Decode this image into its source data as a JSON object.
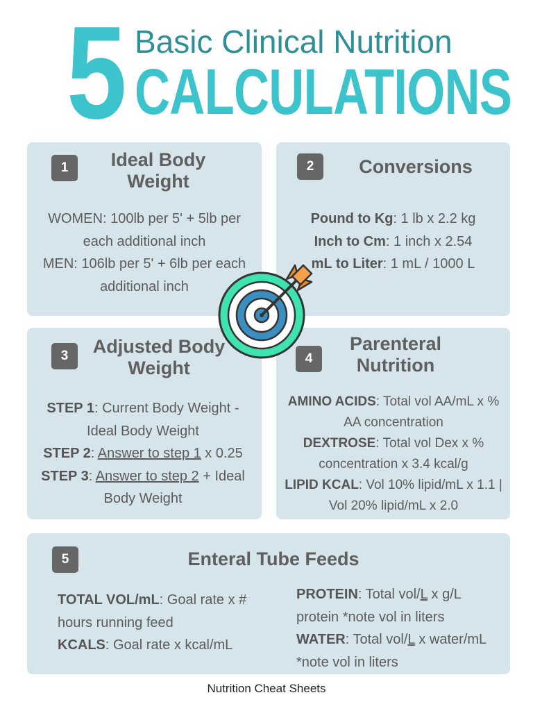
{
  "header": {
    "number": "5",
    "subtitle": "Basic Clinical Nutrition",
    "title": "CALCULATIONS"
  },
  "cards": {
    "ibw": {
      "badge": "1",
      "title_line1": "Ideal Body",
      "title_line2": "Weight",
      "women_line1": "WOMEN: 100lb per 5' + 5lb per",
      "women_line2": "each additional inch",
      "men_line1": "MEN: 106lb per 5' + 6lb per each",
      "men_line2": "additional inch"
    },
    "conversions": {
      "badge": "2",
      "title": "Conversions",
      "rows": [
        {
          "label": "Pound to Kg",
          "text": ": 1 lb x 2.2 kg"
        },
        {
          "label": "Inch to Cm",
          "text": ": 1 inch x 2.54"
        },
        {
          "label": "mL to Liter",
          "text": ": 1 mL / 1000 L"
        }
      ]
    },
    "abw": {
      "badge": "3",
      "title_line1": "Adjusted Body",
      "title_line2": "Weight",
      "step1_label": "STEP 1",
      "step1_text": ": Current Body Weight -",
      "step1_line2": "Ideal Body Weight",
      "step2_label": "STEP 2",
      "step2_sep": ": ",
      "step2_ref": "Answer to step 1",
      "step2_text": " x 0.25",
      "step3_label": "STEP 3",
      "step3_sep": ": ",
      "step3_ref": "Answer to step 2",
      "step3_text": " + Ideal",
      "step3_line2": "Body Weight"
    },
    "parenteral": {
      "badge": "4",
      "title_line1": "Parenteral",
      "title_line2": "Nutrition",
      "aa_label": "AMINO ACIDS",
      "aa_text": ": Total vol AA/mL x %",
      "aa_line2": "AA concentration",
      "dex_label": "DEXTROSE",
      "dex_text": ": Total vol Dex x %",
      "dex_line2": "concentration x 3.4 kcal/g",
      "lipid_label": "LIPID KCAL",
      "lipid_text": ": Vol 10% lipid/mL x 1.1 |",
      "lipid_line2": "Vol 20% lipid/mL x 2.0"
    },
    "enteral": {
      "badge": "5",
      "title": "Enteral Tube Feeds",
      "totvol_label": "TOTAL VOL/mL",
      "totvol_text": ": Goal rate x #",
      "totvol_line2": "hours running feed",
      "kcals_label": "KCALS",
      "kcals_text": ": Goal rate x kcal/mL",
      "protein_label": "PROTEIN",
      "protein_text_a": ": Total vol/",
      "protein_L": "L",
      "protein_text_b": " x g/L",
      "protein_line2": "protein *note vol in liters",
      "water_label": "WATER",
      "water_text_a": ": Total vol/",
      "water_L": "L",
      "water_text_b": " x water/mL",
      "water_line2": "*note vol in liters"
    }
  },
  "footer": "Nutrition Cheat Sheets",
  "icon": "target-with-arrow-icon",
  "colors": {
    "accent": "#3cc3cb",
    "accent_dark": "#2e8f96",
    "card_bg": "#d6e5ec",
    "badge_bg": "#666666",
    "target_green": "#3ee3b0",
    "target_blue": "#3a8fc0",
    "arrow_orange": "#f08a24"
  }
}
